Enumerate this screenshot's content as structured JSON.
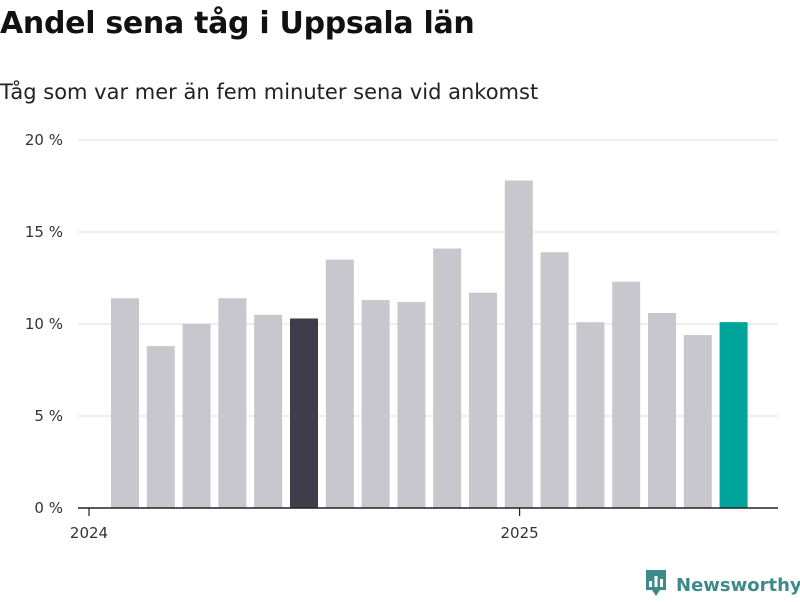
{
  "title": "Andel sena tåg i Uppsala län",
  "subtitle": "Tåg som var mer än fem minuter sena vid ankomst",
  "brand": {
    "name": "Newsworthy",
    "color": "#3e8a8a",
    "icon": "bar-chart-bubble-icon"
  },
  "colors": {
    "default": "#c8c7cd",
    "highlight": "#3f3d4a",
    "latest": "#00a49a"
  },
  "chart_data": {
    "type": "bar",
    "title": "Andel sena tåg i Uppsala län",
    "subtitle": "Tåg som var mer än fem minuter sena vid ankomst",
    "xlabel": "",
    "ylabel": "",
    "ylim": [
      0,
      20
    ],
    "yticks": [
      0,
      5,
      10,
      15,
      20
    ],
    "ytick_labels": [
      "0 %",
      "5 %",
      "10 %",
      "15 %",
      "20 %"
    ],
    "x_labels": [
      {
        "label": "2024",
        "position": 0
      },
      {
        "label": "2025",
        "position": 12
      }
    ],
    "values": [
      11.4,
      8.8,
      10.0,
      11.4,
      10.5,
      10.3,
      13.5,
      11.3,
      11.2,
      14.1,
      11.7,
      17.8,
      13.9,
      10.1,
      12.3,
      10.6,
      9.4,
      10.1
    ],
    "highlight_index": 5,
    "latest_index": 17,
    "grid": true
  }
}
